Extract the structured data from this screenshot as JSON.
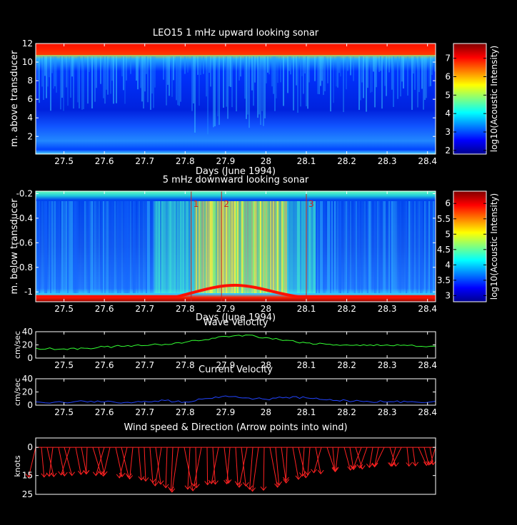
{
  "chart_data": [
    {
      "type": "heatmap",
      "title": "LEO15 1 mHz upward looking sonar",
      "xlabel": "Days (June 1994)",
      "ylabel": "m. above transducer",
      "xlim": [
        27.43,
        28.42
      ],
      "ylim": [
        0.1,
        12
      ],
      "xticks": [
        "27.5",
        "27.6",
        "27.7",
        "27.8",
        "27.9",
        "28",
        "28.1",
        "28.2",
        "28.3",
        "28.4"
      ],
      "xtick_values": [
        27.5,
        27.6,
        27.7,
        27.8,
        27.9,
        28.0,
        28.1,
        28.2,
        28.3,
        28.4
      ],
      "yticks": [
        "2",
        "4",
        "6",
        "8",
        "10",
        "12"
      ],
      "ytick_values": [
        2,
        4,
        6,
        8,
        10,
        12
      ],
      "colorbar": {
        "label": "log10(Acoustic Intensity)",
        "range": [
          1.8,
          7.8
        ],
        "ticks": [
          "2",
          "3",
          "4",
          "5",
          "6",
          "7"
        ],
        "tick_values": [
          2,
          3,
          4,
          5,
          6,
          7
        ]
      }
    },
    {
      "type": "heatmap",
      "title": "5 mHz downward looking sonar",
      "xlabel": "Days (June 1994)",
      "ylabel": "m. below transducer",
      "xlim": [
        27.43,
        28.42
      ],
      "ylim": [
        -1.08,
        -0.18
      ],
      "xticks": [
        "27.5",
        "27.6",
        "27.7",
        "27.8",
        "27.9",
        "28",
        "28.1",
        "28.2",
        "28.3",
        "28.4"
      ],
      "xtick_values": [
        27.5,
        27.6,
        27.7,
        27.8,
        27.9,
        28.0,
        28.1,
        28.2,
        28.3,
        28.4
      ],
      "yticks": [
        "-0.2",
        "-0.4",
        "-0.6",
        "-0.8",
        "-1"
      ],
      "ytick_values": [
        -0.2,
        -0.4,
        -0.6,
        -0.8,
        -1.0
      ],
      "markers": [
        {
          "label": "1",
          "x": 27.815
        },
        {
          "label": "2",
          "x": 27.89
        },
        {
          "label": "3",
          "x": 28.1
        }
      ],
      "colorbar": {
        "label": "log10(Acoustic Intensity)",
        "range": [
          2.8,
          6.4
        ],
        "ticks": [
          "3",
          "3.5",
          "4",
          "4.5",
          "5",
          "5.5",
          "6"
        ],
        "tick_values": [
          3,
          3.5,
          4,
          4.5,
          5,
          5.5,
          6
        ]
      }
    },
    {
      "type": "line",
      "title": "Wave Velocity",
      "ylabel": "cm/sec",
      "xlim": [
        27.43,
        28.42
      ],
      "ylim": [
        0,
        40
      ],
      "xticks": [
        "27.5",
        "27.6",
        "27.7",
        "27.8",
        "27.9",
        "28",
        "28.1",
        "28.2",
        "28.3",
        "28.4"
      ],
      "xtick_values": [
        27.5,
        27.6,
        27.7,
        27.8,
        27.9,
        28.0,
        28.1,
        28.2,
        28.3,
        28.4
      ],
      "yticks": [
        "0",
        "20",
        "40"
      ],
      "ytick_values": [
        0,
        20,
        40
      ],
      "color": "#33ff33",
      "x": [
        27.43,
        27.5,
        27.55,
        27.6,
        27.65,
        27.7,
        27.75,
        27.8,
        27.85,
        27.9,
        27.95,
        28.0,
        28.05,
        28.1,
        28.15,
        28.2,
        28.25,
        28.3,
        28.35,
        28.42
      ],
      "y": [
        15,
        14,
        15,
        17,
        18,
        19,
        21,
        24,
        28,
        33,
        35,
        31,
        27,
        23,
        21,
        20,
        19,
        20,
        19,
        18
      ]
    },
    {
      "type": "line",
      "title": "Current Velocity",
      "ylabel": "cm/sec",
      "xlim": [
        27.43,
        28.42
      ],
      "ylim": [
        0,
        40
      ],
      "xticks": [
        "27.5",
        "27.6",
        "27.7",
        "27.8",
        "27.9",
        "28",
        "28.1",
        "28.2",
        "28.3",
        "28.4"
      ],
      "xtick_values": [
        27.5,
        27.6,
        27.7,
        27.8,
        27.9,
        28.0,
        28.1,
        28.2,
        28.3,
        28.4
      ],
      "yticks": [
        "0",
        "20",
        "40"
      ],
      "ytick_values": [
        0,
        20,
        40
      ],
      "color": "#2244ff",
      "x": [
        27.43,
        27.5,
        27.55,
        27.6,
        27.65,
        27.7,
        27.75,
        27.8,
        27.85,
        27.9,
        27.95,
        28.0,
        28.05,
        28.1,
        28.15,
        28.2,
        28.25,
        28.3,
        28.35,
        28.42
      ],
      "y": [
        5,
        4,
        6,
        5,
        4,
        6,
        7,
        5,
        10,
        14,
        11,
        9,
        12,
        11,
        8,
        7,
        6,
        5,
        5,
        6
      ]
    },
    {
      "type": "line",
      "title": "Wind speed & Direction (Arrow points into wind)",
      "ylabel": "knots",
      "xlim": [
        27.43,
        28.42
      ],
      "ylim": [
        -5,
        25
      ],
      "y_reversed": true,
      "yticks": [
        "0",
        "15",
        "25"
      ],
      "ytick_values": [
        0,
        15,
        25
      ],
      "color": "#ff2222",
      "x": [
        27.43,
        27.5,
        27.55,
        27.6,
        27.65,
        27.7,
        27.75,
        27.78,
        27.8,
        27.85,
        27.9,
        27.95,
        27.99,
        28.0,
        28.05,
        28.1,
        28.15,
        28.2,
        28.25,
        28.3,
        28.35,
        28.42
      ],
      "y": [
        16,
        15,
        14,
        15,
        16,
        18,
        21,
        24,
        23,
        20,
        19,
        21,
        24,
        22,
        18,
        15,
        13,
        12,
        11,
        10,
        10,
        9
      ]
    }
  ]
}
